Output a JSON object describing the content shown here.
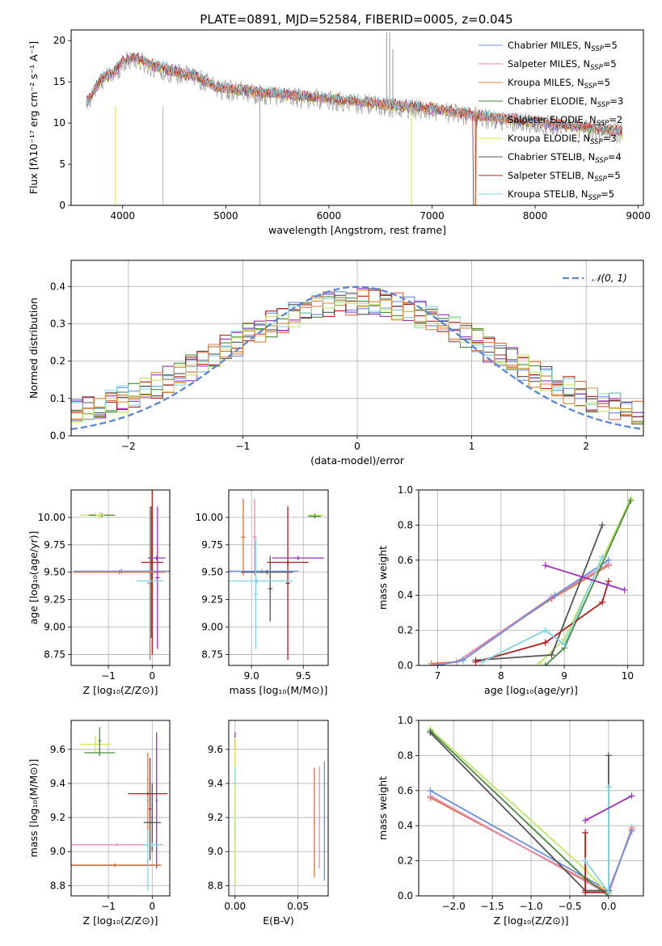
{
  "title": "PLATE=0891, MJD=52584, FIBERID=0005, z=0.045",
  "colors": [
    "#6a8fdc",
    "#e98aba",
    "#d98b3e",
    "#4a8a3e",
    "#e0703e",
    "#d7e83c",
    "#555555",
    "#b01f1f",
    "#7fd6e0",
    "#9b2fbf",
    "#c0e866",
    "#888888",
    "#aaaaaa"
  ],
  "chart_data": [
    {
      "id": "spectrum",
      "type": "line",
      "title": "PLATE=0891, MJD=52584, FIBERID=0005, z=0.045",
      "xlabel": "wavelength [Angstrom, rest frame]",
      "ylabel": "Flux [fλ10⁻¹⁷ erg cm⁻² s⁻¹ A⁻¹]",
      "xlim": [
        3500,
        9050
      ],
      "ylim": [
        0,
        21.3
      ],
      "xticks": [
        4000,
        5000,
        6000,
        7000,
        8000,
        9000
      ],
      "yticks": [
        0,
        5,
        10,
        15,
        20
      ],
      "grid": false,
      "legend_position": "upper right",
      "continuum": {
        "x": [
          3650,
          3700,
          3800,
          3900,
          4000,
          4100,
          4300,
          4500,
          4700,
          4900,
          5100,
          5300,
          5500,
          5700,
          6000,
          6300,
          6600,
          6900,
          7200,
          7500,
          7800,
          8100,
          8400,
          8700,
          8850
        ],
        "y": [
          12.5,
          13.5,
          15.5,
          16.0,
          17.5,
          18.0,
          17.0,
          16.3,
          15.8,
          14.5,
          14.0,
          13.8,
          13.6,
          13.3,
          13.0,
          12.6,
          12.2,
          11.9,
          11.4,
          10.8,
          10.4,
          10.0,
          9.6,
          9.2,
          9.0
        ]
      },
      "series": [
        {
          "name": "Chabrier MILES, N_SSP=5",
          "label_main": "Chabrier MILES, N",
          "label_sub": "SSP",
          "label_tail": "=5",
          "offset": 0.3
        },
        {
          "name": "Salpeter MILES, N_SSP=5",
          "label_main": "Salpeter MILES, N",
          "label_sub": "SSP",
          "label_tail": "=5",
          "offset": 0.2
        },
        {
          "name": "Kroupa MILES, N_SSP=5",
          "label_main": "Kroupa MILES, N",
          "label_sub": "SSP",
          "label_tail": "=5",
          "offset": 0.25
        },
        {
          "name": "Chabrier ELODIE, N_SSP=3",
          "label_main": "Chabrier ELODIE, N",
          "label_sub": "SSP",
          "label_tail": "=3",
          "offset": 0.1
        },
        {
          "name": "Salpeter ELODIE, N_SSP=2",
          "label_main": "Salpeter ELODIE, N",
          "label_sub": "SSP",
          "label_tail": "=2",
          "offset": 0.0
        },
        {
          "name": "Kroupa ELODIE, N_SSP=3",
          "label_main": "Kroupa ELODIE, N",
          "label_sub": "SSP",
          "label_tail": "=3",
          "offset": -0.1
        },
        {
          "name": "Chabrier STELIB, N_SSP=4",
          "label_main": "Chabrier STELIB, N",
          "label_sub": "SSP",
          "label_tail": "=4",
          "offset": -0.4
        },
        {
          "name": "Salpeter STELIB, N_SSP=5",
          "label_main": "Salpeter STELIB, N",
          "label_sub": "SSP",
          "label_tail": "=5",
          "offset": -0.2
        },
        {
          "name": "Kroupa STELIB, N_SSP=5",
          "label_main": "Kroupa STELIB, N",
          "label_sub": "SSP",
          "label_tail": "=5",
          "offset": -0.3
        }
      ]
    },
    {
      "id": "residuals",
      "type": "line",
      "xlabel": "(data-model)/error",
      "ylabel": "Normed distribution",
      "xlim": [
        -2.5,
        2.5
      ],
      "ylim": [
        0,
        0.47
      ],
      "xticks": [
        -2,
        -1,
        0,
        1,
        2
      ],
      "yticks": [
        0.0,
        0.1,
        0.2,
        0.3,
        0.4
      ],
      "grid": true,
      "legend_position": "upper right",
      "legend_label": "𝒩(0, 1)",
      "gaussian": {
        "mean": 0,
        "sigma": 1
      }
    },
    {
      "id": "age_vs_Z",
      "type": "scatter",
      "xlabel": "Z [log₁₀(Z/Z⊙)]",
      "ylabel": "age  [log₁₀(age/yr)]",
      "xlim": [
        -1.85,
        0.4
      ],
      "ylim": [
        8.65,
        10.25
      ],
      "xticks": [
        -1,
        0
      ],
      "yticks": [
        8.75,
        9.0,
        9.25,
        9.5,
        9.75,
        10.0
      ],
      "grid": true,
      "points": [
        {
          "x": -1.3,
          "xerr": 0.35,
          "y": 10.02,
          "yerr": 0.02,
          "color": "#c0e866"
        },
        {
          "x": -1.15,
          "xerr": 0.3,
          "y": 10.02,
          "yerr": 0.02,
          "color": "#4a8a3e"
        },
        {
          "x": -1.2,
          "xerr": 0.1,
          "y": 10.02,
          "yerr": 0.03,
          "color": "#d7e83c"
        },
        {
          "x": -0.05,
          "xerr": 0.06,
          "y": 9.4,
          "yerr": 0.7,
          "color": "#e0703e"
        },
        {
          "x": -0.02,
          "xerr": 0.05,
          "y": 9.5,
          "yerr": 0.6,
          "color": "#555555"
        },
        {
          "x": 0.0,
          "xerr": 0.08,
          "y": 9.5,
          "yerr": 0.75,
          "color": "#b01f1f"
        },
        {
          "x": -0.7,
          "xerr": 1.1,
          "y": 9.51,
          "yerr": 0.02,
          "color": "#6a8fdc"
        },
        {
          "x": -0.75,
          "xerr": 1.05,
          "y": 9.5,
          "yerr": 0.02,
          "color": "#e0703e"
        },
        {
          "x": 0.1,
          "xerr": 0.2,
          "y": 9.63,
          "yerr": 0.02,
          "color": "#9b2fbf"
        },
        {
          "x": 0.12,
          "xerr": 0.05,
          "y": 9.45,
          "yerr": 0.65,
          "color": "#9b2fbf"
        },
        {
          "x": 0.0,
          "xerr": 0.25,
          "y": 9.59,
          "yerr": 0.02,
          "color": "#b01f1f"
        },
        {
          "x": -0.05,
          "xerr": 0.3,
          "y": 9.42,
          "yerr": 0.02,
          "color": "#7fd6e0"
        }
      ]
    },
    {
      "id": "age_vs_mass",
      "type": "scatter",
      "xlabel": "mass [log₁₀(M/M⊙)]",
      "ylabel": "",
      "xlim": [
        8.78,
        9.74
      ],
      "ylim": [
        8.65,
        10.25
      ],
      "xticks": [
        9.0,
        9.5
      ],
      "yticks": [
        8.75,
        9.0,
        9.25,
        9.5,
        9.75,
        10.0
      ],
      "grid": true,
      "points": [
        {
          "x": 9.62,
          "xerr": 0.08,
          "y": 10.02,
          "yerr": 0.02,
          "color": "#c0e866"
        },
        {
          "x": 9.61,
          "xerr": 0.06,
          "y": 10.01,
          "yerr": 0.02,
          "color": "#4a8a3e"
        },
        {
          "x": 8.92,
          "xerr": 0.02,
          "y": 9.82,
          "yerr": 0.35,
          "color": "#e0703e"
        },
        {
          "x": 9.03,
          "xerr": 0.02,
          "y": 9.82,
          "yerr": 0.35,
          "color": "#e98aba"
        },
        {
          "x": 9.18,
          "xerr": 0.02,
          "y": 9.35,
          "yerr": 0.3,
          "color": "#555555"
        },
        {
          "x": 9.35,
          "xerr": 0.02,
          "y": 9.4,
          "yerr": 0.7,
          "color": "#b01f1f"
        },
        {
          "x": 9.35,
          "xerr": 0.2,
          "y": 9.59,
          "yerr": 0.02,
          "color": "#b01f1f"
        },
        {
          "x": 9.45,
          "xerr": 0.25,
          "y": 9.63,
          "yerr": 0.02,
          "color": "#9b2fbf"
        },
        {
          "x": 9.1,
          "xerr": 0.35,
          "y": 9.51,
          "yerr": 0.02,
          "color": "#6a8fdc"
        },
        {
          "x": 9.15,
          "xerr": 0.25,
          "y": 9.5,
          "yerr": 0.02,
          "color": "#555555"
        },
        {
          "x": 9.05,
          "xerr": 0.35,
          "y": 9.42,
          "yerr": 0.02,
          "color": "#7fd6e0"
        },
        {
          "x": 9.04,
          "xerr": 0.02,
          "y": 9.3,
          "yerr": 0.5,
          "color": "#7fd6e0"
        }
      ]
    },
    {
      "id": "weight_vs_age",
      "type": "line",
      "xlabel": "age  [log₁₀(age/yr)]",
      "ylabel": "mass weight",
      "xlim": [
        6.7,
        10.25
      ],
      "ylim": [
        0.0,
        1.0
      ],
      "xticks": [
        7,
        8,
        9,
        10
      ],
      "yticks": [
        0.0,
        0.2,
        0.4,
        0.6,
        0.8,
        1.0
      ],
      "grid": true,
      "lines": [
        {
          "color": "#e0703e",
          "x": [
            6.9,
            7.3,
            8.8,
            9.7
          ],
          "y": [
            0.01,
            0.02,
            0.38,
            0.57
          ]
        },
        {
          "color": "#e98aba",
          "x": [
            6.9,
            7.3,
            8.8,
            9.7
          ],
          "y": [
            0.0,
            0.02,
            0.39,
            0.58
          ]
        },
        {
          "color": "#6a8fdc",
          "x": [
            7.0,
            7.4,
            8.85,
            9.7
          ],
          "y": [
            0.0,
            0.03,
            0.4,
            0.6
          ]
        },
        {
          "color": "#c0e866",
          "x": [
            8.6,
            9.0,
            10.05
          ],
          "y": [
            0.01,
            0.15,
            0.95
          ]
        },
        {
          "color": "#4a8a3e",
          "x": [
            8.7,
            9.0,
            10.05
          ],
          "y": [
            0.0,
            0.1,
            0.94
          ]
        },
        {
          "color": "#555555",
          "x": [
            7.6,
            8.8,
            9.6
          ],
          "y": [
            0.03,
            0.06,
            0.8
          ]
        },
        {
          "color": "#b01f1f",
          "x": [
            7.6,
            8.7,
            9.6,
            9.7
          ],
          "y": [
            0.02,
            0.13,
            0.36,
            0.48
          ]
        },
        {
          "color": "#7fd6e0",
          "x": [
            7.7,
            8.7,
            9.0,
            9.6
          ],
          "y": [
            0.02,
            0.2,
            0.12,
            0.62
          ]
        },
        {
          "color": "#9b2fbf",
          "x": [
            8.7,
            9.95
          ],
          "y": [
            0.57,
            0.43
          ]
        }
      ]
    },
    {
      "id": "mass_vs_Z",
      "type": "scatter",
      "xlabel": "Z [log₁₀(Z/Z⊙)]",
      "ylabel": "mass [log₁₀(M/M⊙)]",
      "xlim": [
        -1.85,
        0.4
      ],
      "ylim": [
        8.74,
        9.77
      ],
      "xticks": [
        -1,
        0
      ],
      "yticks": [
        8.8,
        9.0,
        9.2,
        9.4,
        9.6
      ],
      "grid": true,
      "points": [
        {
          "x": -1.3,
          "xerr": 0.35,
          "y": 9.63,
          "yerr": 0.05,
          "color": "#d7e83c"
        },
        {
          "x": -1.2,
          "xerr": 0.35,
          "y": 9.58,
          "yerr": 0.02,
          "color": "#4a8a3e"
        },
        {
          "x": -1.2,
          "xerr": 0.03,
          "y": 9.65,
          "yerr": 0.08,
          "color": "#4a8a3e"
        },
        {
          "x": -0.1,
          "xerr": 0.02,
          "y": 9.3,
          "yerr": 0.28,
          "color": "#e0703e"
        },
        {
          "x": -0.05,
          "xerr": 0.03,
          "y": 9.25,
          "yerr": 0.3,
          "color": "#b01f1f"
        },
        {
          "x": 0.0,
          "xerr": 0.02,
          "y": 9.2,
          "yerr": 0.2,
          "color": "#555555"
        },
        {
          "x": 0.1,
          "xerr": 0.02,
          "y": 9.3,
          "yerr": 0.4,
          "color": "#9b2fbf"
        },
        {
          "x": -0.1,
          "xerr": 0.45,
          "y": 9.34,
          "yerr": 0.01,
          "color": "#b01f1f"
        },
        {
          "x": 0.0,
          "xerr": 0.2,
          "y": 9.17,
          "yerr": 0.01,
          "color": "#555555"
        },
        {
          "x": -0.8,
          "xerr": 1.05,
          "y": 9.04,
          "yerr": 0.01,
          "color": "#e98aba"
        },
        {
          "x": 0.0,
          "xerr": 0.2,
          "y": 9.04,
          "yerr": 0.01,
          "color": "#7fd6e0"
        },
        {
          "x": -0.85,
          "xerr": 1.05,
          "y": 8.92,
          "yerr": 0.01,
          "color": "#555555"
        },
        {
          "x": -0.85,
          "xerr": 1.05,
          "y": 8.92,
          "yerr": 0.01,
          "color": "#e0703e"
        },
        {
          "x": -0.1,
          "xerr": 0.02,
          "y": 8.95,
          "yerr": 0.18,
          "color": "#7fd6e0"
        }
      ]
    },
    {
      "id": "mass_vs_ebv",
      "type": "scatter",
      "xlabel": "E(B-V)",
      "ylabel": "",
      "xlim": [
        -0.005,
        0.074
      ],
      "ylim": [
        8.74,
        9.77
      ],
      "xticks": [
        0.0,
        0.05
      ],
      "yticks": [
        8.8,
        9.0,
        9.2,
        9.4,
        9.6
      ],
      "grid": true,
      "points": [
        {
          "x": 0.0,
          "xerr": 0.0,
          "y": 9.65,
          "yerr": 0.05,
          "color": "#9b2fbf"
        },
        {
          "x": 0.0,
          "xerr": 0.0,
          "y": 9.55,
          "yerr": 0.12,
          "color": "#d7e83c"
        },
        {
          "x": 0.0,
          "xerr": 0.0,
          "y": 9.15,
          "yerr": 0.35,
          "color": "#7fd6e0"
        },
        {
          "x": 0.0,
          "xerr": 0.0,
          "y": 9.1,
          "yerr": 0.3,
          "color": "#c0e866"
        },
        {
          "x": 0.063,
          "xerr": 0.0,
          "y": 9.17,
          "yerr": 0.32,
          "color": "#e0703e"
        },
        {
          "x": 0.067,
          "xerr": 0.0,
          "y": 9.2,
          "yerr": 0.3,
          "color": "#e98aba"
        },
        {
          "x": 0.071,
          "xerr": 0.0,
          "y": 9.18,
          "yerr": 0.35,
          "color": "#6a8fdc"
        }
      ]
    },
    {
      "id": "weight_vs_Z",
      "type": "line",
      "xlabel": "Z [log₁₀(Z/Z⊙)]",
      "ylabel": "mass weight",
      "xlim": [
        -2.45,
        0.45
      ],
      "ylim": [
        0.0,
        1.0
      ],
      "xticks": [
        -2.0,
        -1.5,
        -1.0,
        -0.5,
        0.0
      ],
      "yticks": [
        0.0,
        0.2,
        0.4,
        0.6,
        0.8,
        1.0
      ],
      "grid": true,
      "lines": [
        {
          "color": "#e0703e",
          "x": [
            -2.3,
            0.0,
            0.3
          ],
          "y": [
            0.56,
            0.02,
            0.38
          ]
        },
        {
          "color": "#e98aba",
          "x": [
            -2.3,
            0.0,
            0.3
          ],
          "y": [
            0.57,
            0.01,
            0.39
          ]
        },
        {
          "color": "#6a8fdc",
          "x": [
            -2.3,
            0.0,
            0.3
          ],
          "y": [
            0.6,
            0.03,
            0.37
          ]
        },
        {
          "color": "#c0e866",
          "x": [
            -2.3,
            -0.3,
            0.0
          ],
          "y": [
            0.95,
            0.15,
            0.01
          ]
        },
        {
          "color": "#4a8a3e",
          "x": [
            -2.3,
            -0.3,
            0.0
          ],
          "y": [
            0.94,
            0.1,
            0.0
          ]
        },
        {
          "color": "#555555",
          "x": [
            -2.3,
            -0.3,
            0.0,
            0.0
          ],
          "y": [
            0.93,
            0.03,
            0.03,
            0.8
          ]
        },
        {
          "color": "#b01f1f",
          "x": [
            -0.3,
            -0.3,
            0.0
          ],
          "y": [
            0.36,
            0.02,
            0.02
          ]
        },
        {
          "color": "#7fd6e0",
          "x": [
            -0.3,
            0.0,
            0.0
          ],
          "y": [
            0.2,
            0.02,
            0.62
          ]
        },
        {
          "color": "#9b2fbf",
          "x": [
            -0.3,
            0.3
          ],
          "y": [
            0.43,
            0.57
          ]
        }
      ]
    }
  ]
}
